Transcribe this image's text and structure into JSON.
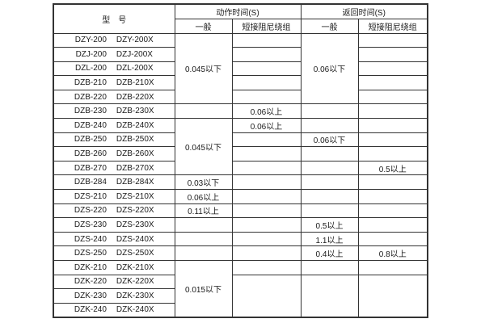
{
  "colors": {
    "table_border": "#333333",
    "text": "#1a1a1a",
    "background": "#ffffff"
  },
  "table": {
    "header": {
      "model_label": "型　号",
      "action_time_label": "动作时间(S)",
      "return_time_label": "返回时间(S)",
      "general_label": "一般",
      "damping_label": "短接阻尼绕组"
    },
    "columns": [
      "model",
      "action_general",
      "action_damping",
      "return_general",
      "return_damping"
    ],
    "rows": [
      {
        "models": [
          "DZY-200",
          "DZY-200X"
        ],
        "cells": [
          {
            "text": "0.045以下",
            "rowspan": 5
          },
          {
            "text": ""
          },
          {
            "text": "0.06以下",
            "rowspan": 5
          },
          {
            "text": ""
          }
        ]
      },
      {
        "models": [
          "DZJ-200",
          "DZJ-200X"
        ],
        "cells": [
          null,
          {
            "text": ""
          },
          null,
          {
            "text": ""
          }
        ]
      },
      {
        "models": [
          "DZL-200",
          "DZL-200X"
        ],
        "cells": [
          null,
          {
            "text": ""
          },
          null,
          {
            "text": ""
          }
        ]
      },
      {
        "models": [
          "DZB-210",
          "DZB-210X"
        ],
        "cells": [
          null,
          {
            "text": ""
          },
          null,
          {
            "text": ""
          }
        ]
      },
      {
        "models": [
          "DZB-220",
          "DZB-220X"
        ],
        "cells": [
          null,
          {
            "text": ""
          },
          null,
          {
            "text": ""
          }
        ]
      },
      {
        "models": [
          "DZB-230",
          "DZB-230X"
        ],
        "cells": [
          {
            "text": ""
          },
          {
            "text": "0.06以上"
          },
          {
            "text": ""
          },
          {
            "text": ""
          }
        ]
      },
      {
        "models": [
          "DZB-240",
          "DZB-240X"
        ],
        "cells": [
          {
            "text": "0.045以下",
            "rowspan": 4
          },
          {
            "text": "0.06以上"
          },
          {
            "text": ""
          },
          {
            "text": ""
          }
        ]
      },
      {
        "models": [
          "DZB-250",
          "DZB-250X"
        ],
        "cells": [
          null,
          {
            "text": ""
          },
          {
            "text": "0.06以下"
          },
          {
            "text": ""
          }
        ]
      },
      {
        "models": [
          "DZB-260",
          "DZB-260X"
        ],
        "cells": [
          null,
          {
            "text": ""
          },
          {
            "text": ""
          },
          {
            "text": ""
          }
        ]
      },
      {
        "models": [
          "DZB-270",
          "DZB-270X"
        ],
        "cells": [
          null,
          {
            "text": ""
          },
          {
            "text": ""
          },
          {
            "text": "0.5以上"
          }
        ]
      },
      {
        "models": [
          "DZB-284",
          "DZB-284X"
        ],
        "cells": [
          {
            "text": "0.03以下"
          },
          {
            "text": ""
          },
          {
            "text": ""
          },
          {
            "text": ""
          }
        ]
      },
      {
        "models": [
          "DZS-210",
          "DZS-210X"
        ],
        "cells": [
          {
            "text": "0.06以上"
          },
          {
            "text": ""
          },
          {
            "text": ""
          },
          {
            "text": ""
          }
        ]
      },
      {
        "models": [
          "DZS-220",
          "DZS-220X"
        ],
        "cells": [
          {
            "text": "0.11以上"
          },
          {
            "text": ""
          },
          {
            "text": ""
          },
          {
            "text": ""
          }
        ]
      },
      {
        "models": [
          "DZS-230",
          "DZS-230X"
        ],
        "cells": [
          {
            "text": ""
          },
          {
            "text": ""
          },
          {
            "text": "0.5以上"
          },
          {
            "text": ""
          }
        ]
      },
      {
        "models": [
          "DZS-240",
          "DZS-240X"
        ],
        "cells": [
          {
            "text": ""
          },
          {
            "text": ""
          },
          {
            "text": "1.1以上"
          },
          {
            "text": ""
          }
        ]
      },
      {
        "models": [
          "DZS-250",
          "DZS-250X"
        ],
        "cells": [
          {
            "text": ""
          },
          {
            "text": ""
          },
          {
            "text": "0.4以上"
          },
          {
            "text": "0.8以上"
          }
        ]
      },
      {
        "models": [
          "DZK-210",
          "DZK-210X"
        ],
        "cells": [
          {
            "text": "0.015以下",
            "rowspan": 4
          },
          {
            "text": ""
          },
          {
            "text": ""
          },
          {
            "text": ""
          }
        ]
      },
      {
        "models": [
          "DZK-220",
          "DZK-220X"
        ],
        "cells": [
          null,
          {
            "text": "",
            "rowspan": 3
          },
          {
            "text": "",
            "rowspan": 3
          },
          {
            "text": "",
            "rowspan": 3
          }
        ]
      },
      {
        "models": [
          "DZK-230",
          "DZK-230X"
        ],
        "cells": [
          null,
          null,
          null,
          null
        ]
      },
      {
        "models": [
          "DZK-240",
          "DZK-240X"
        ],
        "cells": [
          null,
          null,
          null,
          null
        ]
      }
    ]
  }
}
